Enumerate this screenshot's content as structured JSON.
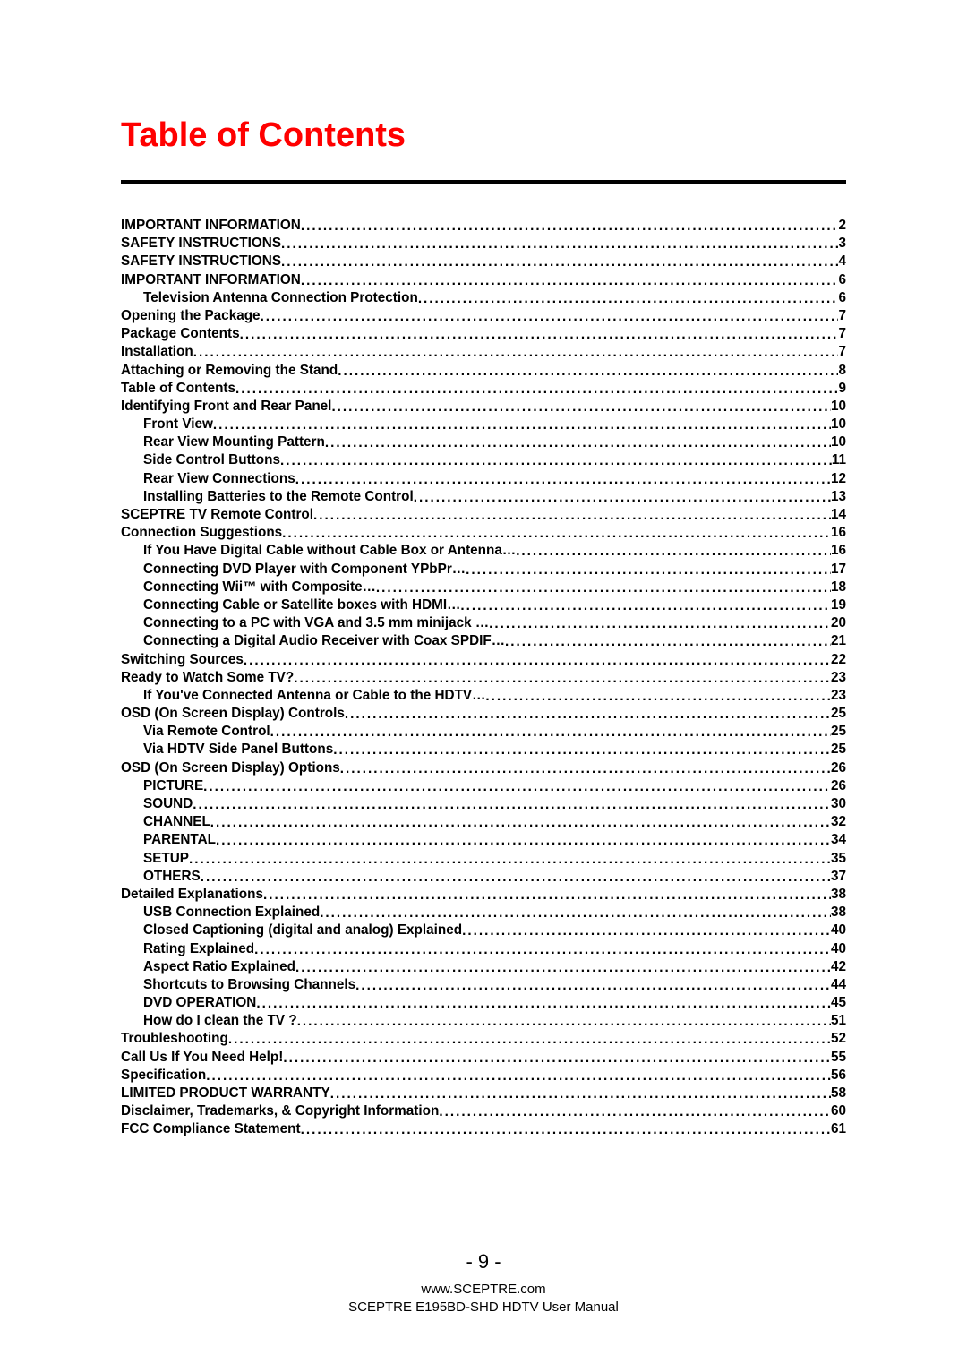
{
  "title": "Table of Contents",
  "title_color": "#ff0000",
  "rule_color": "#000000",
  "text_color": "#000000",
  "background_color": "#ffffff",
  "page_number": "- 9 -",
  "footer_url": "www.SCEPTRE.com",
  "footer_manual": "SCEPTRE E195BD-SHD HDTV User Manual",
  "toc": [
    {
      "label": "IMPORTANT INFORMATION",
      "page": "2",
      "level": 0
    },
    {
      "label": "SAFETY INSTRUCTIONS",
      "page": "3",
      "level": 0
    },
    {
      "label": "SAFETY INSTRUCTIONS",
      "page": "4",
      "level": 0
    },
    {
      "label": "IMPORTANT INFORMATION",
      "page": "6",
      "level": 0
    },
    {
      "label": "Television Antenna Connection Protection",
      "page": "6",
      "level": 1
    },
    {
      "label": "Opening the Package",
      "page": "7",
      "level": 0
    },
    {
      "label": "Package Contents",
      "page": "7",
      "level": 0
    },
    {
      "label": "Installation",
      "page": "7",
      "level": 0
    },
    {
      "label": "Attaching or Removing the Stand",
      "page": "8",
      "level": 0
    },
    {
      "label": "Table of Contents",
      "page": "9",
      "level": 0
    },
    {
      "label": "Identifying Front and Rear Panel",
      "page": "10",
      "level": 0
    },
    {
      "label": "Front View",
      "page": "10",
      "level": 1
    },
    {
      "label": "Rear View Mounting Pattern",
      "page": "10",
      "level": 1
    },
    {
      "label": "Side Control Buttons",
      "page": "11",
      "level": 1
    },
    {
      "label": "Rear View Connections",
      "page": "12",
      "level": 1
    },
    {
      "label": "Installing Batteries to the Remote Control",
      "page": "13",
      "level": 1
    },
    {
      "label": "SCEPTRE TV Remote Control",
      "page": "14",
      "level": 0
    },
    {
      "label": "Connection Suggestions",
      "page": "16",
      "level": 0
    },
    {
      "label": "If You Have Digital Cable without Cable Box or Antenna…",
      "page": "16",
      "level": 1
    },
    {
      "label": "Connecting DVD Player with Component YPbPr…",
      "page": "17",
      "level": 1
    },
    {
      "label": "Connecting Wii™ with Composite…",
      "page": "18",
      "level": 1
    },
    {
      "label": "Connecting Cable or Satellite boxes with HDMI…",
      "page": "19",
      "level": 1
    },
    {
      "label": "Connecting to a PC with VGA and 3.5 mm minijack …",
      "page": "20",
      "level": 1
    },
    {
      "label": "Connecting a Digital Audio Receiver with Coax SPDIF…",
      "page": "21",
      "level": 1
    },
    {
      "label": "Switching Sources",
      "page": "22",
      "level": 0
    },
    {
      "label": "Ready to Watch Some TV?",
      "page": "23",
      "level": 0
    },
    {
      "label": "If You've Connected Antenna or Cable to the HDTV…",
      "page": "23",
      "level": 1
    },
    {
      "label": "OSD (On Screen Display) Controls",
      "page": "25",
      "level": 0
    },
    {
      "label": "Via Remote Control",
      "page": "25",
      "level": 1
    },
    {
      "label": "Via HDTV Side Panel Buttons",
      "page": "25",
      "level": 1
    },
    {
      "label": "OSD (On Screen Display) Options",
      "page": "26",
      "level": 0
    },
    {
      "label": "PICTURE",
      "page": "26",
      "level": 1
    },
    {
      "label": "SOUND",
      "page": "30",
      "level": 1
    },
    {
      "label": "CHANNEL",
      "page": "32",
      "level": 1
    },
    {
      "label": "PARENTAL",
      "page": "34",
      "level": 1
    },
    {
      "label": "SETUP",
      "page": "35",
      "level": 1
    },
    {
      "label": "OTHERS",
      "page": "37",
      "level": 1
    },
    {
      "label": "Detailed Explanations",
      "page": "38",
      "level": 0
    },
    {
      "label": "USB Connection Explained",
      "page": "38",
      "level": 1
    },
    {
      "label": "Closed Captioning (digital and analog) Explained",
      "page": "40",
      "level": 1
    },
    {
      "label": "Rating Explained",
      "page": "40",
      "level": 1
    },
    {
      "label": "Aspect Ratio Explained",
      "page": "42",
      "level": 1
    },
    {
      "label": "Shortcuts to Browsing Channels",
      "page": "44",
      "level": 1
    },
    {
      "label": "DVD OPERATION",
      "page": "45",
      "level": 1
    },
    {
      "label": "How do I clean the TV ?",
      "page": "51",
      "level": 1
    },
    {
      "label": "Troubleshooting",
      "page": "52",
      "level": 0
    },
    {
      "label": "Call Us If You Need Help!",
      "page": "55",
      "level": 0
    },
    {
      "label": "Specification",
      "page": "56",
      "level": 0
    },
    {
      "label": "LIMITED PRODUCT WARRANTY",
      "page": "58",
      "level": 0
    },
    {
      "label": "Disclaimer, Trademarks, & Copyright Information",
      "page": "60",
      "level": 0
    },
    {
      "label": "FCC Compliance Statement",
      "page": "61",
      "level": 0
    }
  ]
}
